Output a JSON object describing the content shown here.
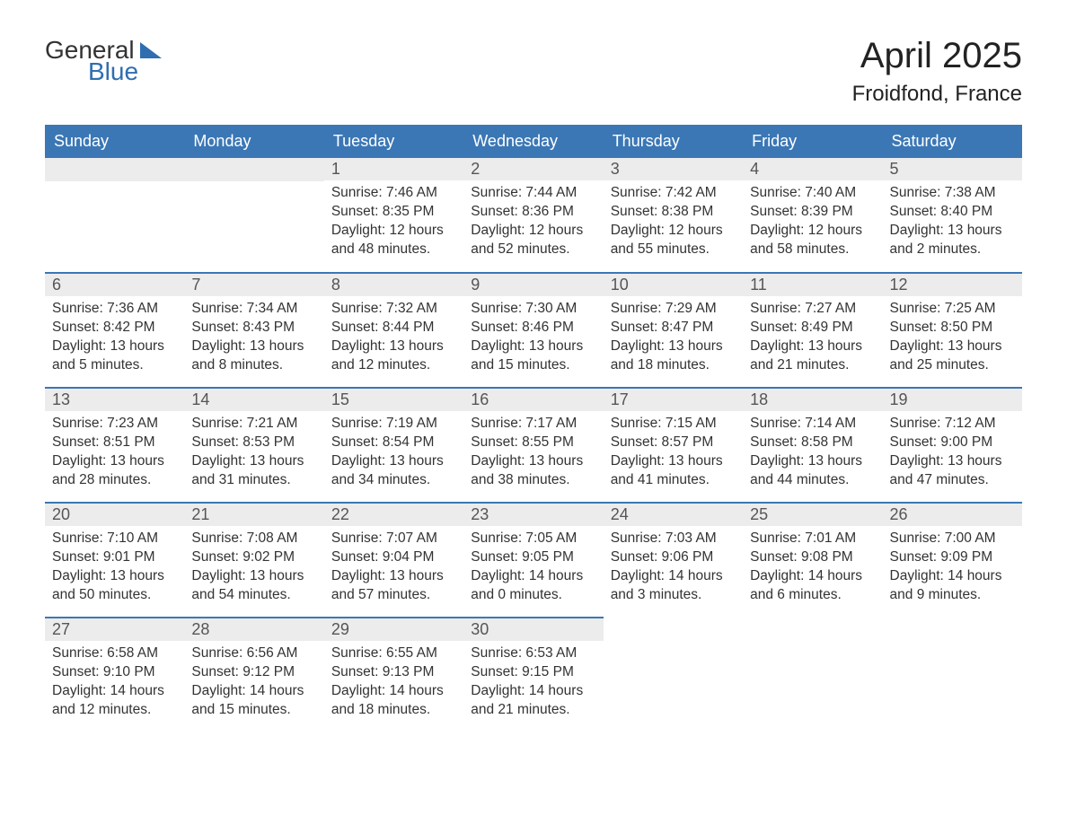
{
  "logo": {
    "word1": "General",
    "word2": "Blue"
  },
  "title": {
    "month_year": "April 2025",
    "location": "Froidfond, France"
  },
  "colors": {
    "header_bg": "#3b77b5",
    "header_text": "#ffffff",
    "daynum_bg": "#ececec",
    "daynum_text": "#555555",
    "body_text": "#333333",
    "logo_blue": "#2f6eb0",
    "border": "#3b77b5"
  },
  "weekdays": [
    "Sunday",
    "Monday",
    "Tuesday",
    "Wednesday",
    "Thursday",
    "Friday",
    "Saturday"
  ],
  "weeks": [
    [
      null,
      null,
      {
        "n": "1",
        "sunrise": "Sunrise: 7:46 AM",
        "sunset": "Sunset: 8:35 PM",
        "daylight": "Daylight: 12 hours and 48 minutes."
      },
      {
        "n": "2",
        "sunrise": "Sunrise: 7:44 AM",
        "sunset": "Sunset: 8:36 PM",
        "daylight": "Daylight: 12 hours and 52 minutes."
      },
      {
        "n": "3",
        "sunrise": "Sunrise: 7:42 AM",
        "sunset": "Sunset: 8:38 PM",
        "daylight": "Daylight: 12 hours and 55 minutes."
      },
      {
        "n": "4",
        "sunrise": "Sunrise: 7:40 AM",
        "sunset": "Sunset: 8:39 PM",
        "daylight": "Daylight: 12 hours and 58 minutes."
      },
      {
        "n": "5",
        "sunrise": "Sunrise: 7:38 AM",
        "sunset": "Sunset: 8:40 PM",
        "daylight": "Daylight: 13 hours and 2 minutes."
      }
    ],
    [
      {
        "n": "6",
        "sunrise": "Sunrise: 7:36 AM",
        "sunset": "Sunset: 8:42 PM",
        "daylight": "Daylight: 13 hours and 5 minutes."
      },
      {
        "n": "7",
        "sunrise": "Sunrise: 7:34 AM",
        "sunset": "Sunset: 8:43 PM",
        "daylight": "Daylight: 13 hours and 8 minutes."
      },
      {
        "n": "8",
        "sunrise": "Sunrise: 7:32 AM",
        "sunset": "Sunset: 8:44 PM",
        "daylight": "Daylight: 13 hours and 12 minutes."
      },
      {
        "n": "9",
        "sunrise": "Sunrise: 7:30 AM",
        "sunset": "Sunset: 8:46 PM",
        "daylight": "Daylight: 13 hours and 15 minutes."
      },
      {
        "n": "10",
        "sunrise": "Sunrise: 7:29 AM",
        "sunset": "Sunset: 8:47 PM",
        "daylight": "Daylight: 13 hours and 18 minutes."
      },
      {
        "n": "11",
        "sunrise": "Sunrise: 7:27 AM",
        "sunset": "Sunset: 8:49 PM",
        "daylight": "Daylight: 13 hours and 21 minutes."
      },
      {
        "n": "12",
        "sunrise": "Sunrise: 7:25 AM",
        "sunset": "Sunset: 8:50 PM",
        "daylight": "Daylight: 13 hours and 25 minutes."
      }
    ],
    [
      {
        "n": "13",
        "sunrise": "Sunrise: 7:23 AM",
        "sunset": "Sunset: 8:51 PM",
        "daylight": "Daylight: 13 hours and 28 minutes."
      },
      {
        "n": "14",
        "sunrise": "Sunrise: 7:21 AM",
        "sunset": "Sunset: 8:53 PM",
        "daylight": "Daylight: 13 hours and 31 minutes."
      },
      {
        "n": "15",
        "sunrise": "Sunrise: 7:19 AM",
        "sunset": "Sunset: 8:54 PM",
        "daylight": "Daylight: 13 hours and 34 minutes."
      },
      {
        "n": "16",
        "sunrise": "Sunrise: 7:17 AM",
        "sunset": "Sunset: 8:55 PM",
        "daylight": "Daylight: 13 hours and 38 minutes."
      },
      {
        "n": "17",
        "sunrise": "Sunrise: 7:15 AM",
        "sunset": "Sunset: 8:57 PM",
        "daylight": "Daylight: 13 hours and 41 minutes."
      },
      {
        "n": "18",
        "sunrise": "Sunrise: 7:14 AM",
        "sunset": "Sunset: 8:58 PM",
        "daylight": "Daylight: 13 hours and 44 minutes."
      },
      {
        "n": "19",
        "sunrise": "Sunrise: 7:12 AM",
        "sunset": "Sunset: 9:00 PM",
        "daylight": "Daylight: 13 hours and 47 minutes."
      }
    ],
    [
      {
        "n": "20",
        "sunrise": "Sunrise: 7:10 AM",
        "sunset": "Sunset: 9:01 PM",
        "daylight": "Daylight: 13 hours and 50 minutes."
      },
      {
        "n": "21",
        "sunrise": "Sunrise: 7:08 AM",
        "sunset": "Sunset: 9:02 PM",
        "daylight": "Daylight: 13 hours and 54 minutes."
      },
      {
        "n": "22",
        "sunrise": "Sunrise: 7:07 AM",
        "sunset": "Sunset: 9:04 PM",
        "daylight": "Daylight: 13 hours and 57 minutes."
      },
      {
        "n": "23",
        "sunrise": "Sunrise: 7:05 AM",
        "sunset": "Sunset: 9:05 PM",
        "daylight": "Daylight: 14 hours and 0 minutes."
      },
      {
        "n": "24",
        "sunrise": "Sunrise: 7:03 AM",
        "sunset": "Sunset: 9:06 PM",
        "daylight": "Daylight: 14 hours and 3 minutes."
      },
      {
        "n": "25",
        "sunrise": "Sunrise: 7:01 AM",
        "sunset": "Sunset: 9:08 PM",
        "daylight": "Daylight: 14 hours and 6 minutes."
      },
      {
        "n": "26",
        "sunrise": "Sunrise: 7:00 AM",
        "sunset": "Sunset: 9:09 PM",
        "daylight": "Daylight: 14 hours and 9 minutes."
      }
    ],
    [
      {
        "n": "27",
        "sunrise": "Sunrise: 6:58 AM",
        "sunset": "Sunset: 9:10 PM",
        "daylight": "Daylight: 14 hours and 12 minutes."
      },
      {
        "n": "28",
        "sunrise": "Sunrise: 6:56 AM",
        "sunset": "Sunset: 9:12 PM",
        "daylight": "Daylight: 14 hours and 15 minutes."
      },
      {
        "n": "29",
        "sunrise": "Sunrise: 6:55 AM",
        "sunset": "Sunset: 9:13 PM",
        "daylight": "Daylight: 14 hours and 18 minutes."
      },
      {
        "n": "30",
        "sunrise": "Sunrise: 6:53 AM",
        "sunset": "Sunset: 9:15 PM",
        "daylight": "Daylight: 14 hours and 21 minutes."
      },
      null,
      null,
      null
    ]
  ]
}
